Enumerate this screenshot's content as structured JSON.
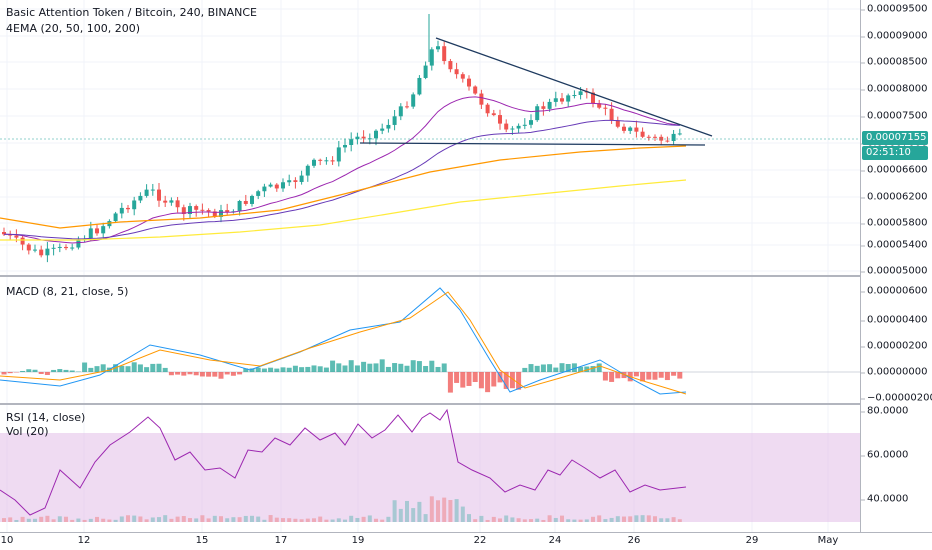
{
  "main_pane": {
    "title": "Basic Attention Token / Bitcoin, 240, BINANCE",
    "indicator": "4EMA (20, 50, 100, 200)",
    "price_ticks": [
      "0.00009500",
      "0.00009000",
      "0.00008500",
      "0.00008000",
      "0.00007500",
      "0.00007000",
      "0.00006600",
      "0.00006200",
      "0.00005800",
      "0.00005400",
      "0.00005000"
    ],
    "last_price": "0.00007155",
    "countdown": "02:51:10",
    "last_price_color": "#26a69a"
  },
  "macd_pane": {
    "title": "MACD (8, 21, close, 5)",
    "ticks": [
      "0.00000600",
      "0.00000400",
      "0.00000200",
      "0.00000000",
      "−0.00000200"
    ]
  },
  "rsi_pane": {
    "title": "RSI (14, close)",
    "vol_title": "Vol (20)",
    "ticks": [
      "80.0000",
      "60.0000",
      "40.0000"
    ]
  },
  "time_axis": [
    "10",
    "12",
    "15",
    "17",
    "19",
    "22",
    "24",
    "26",
    "29",
    "May"
  ],
  "colors": {
    "up": "#26a69a",
    "down": "#ef5350",
    "ema20": "#9c27b0",
    "ema50": "#673ab7",
    "ema100": "#ff9800",
    "ema200": "#ffeb3b",
    "trendline": "#1e3a5f",
    "macd": "#2196f3",
    "signal": "#ff9800",
    "rsi": "#9c27b0",
    "rsi_band": "#e1bee7"
  }
}
